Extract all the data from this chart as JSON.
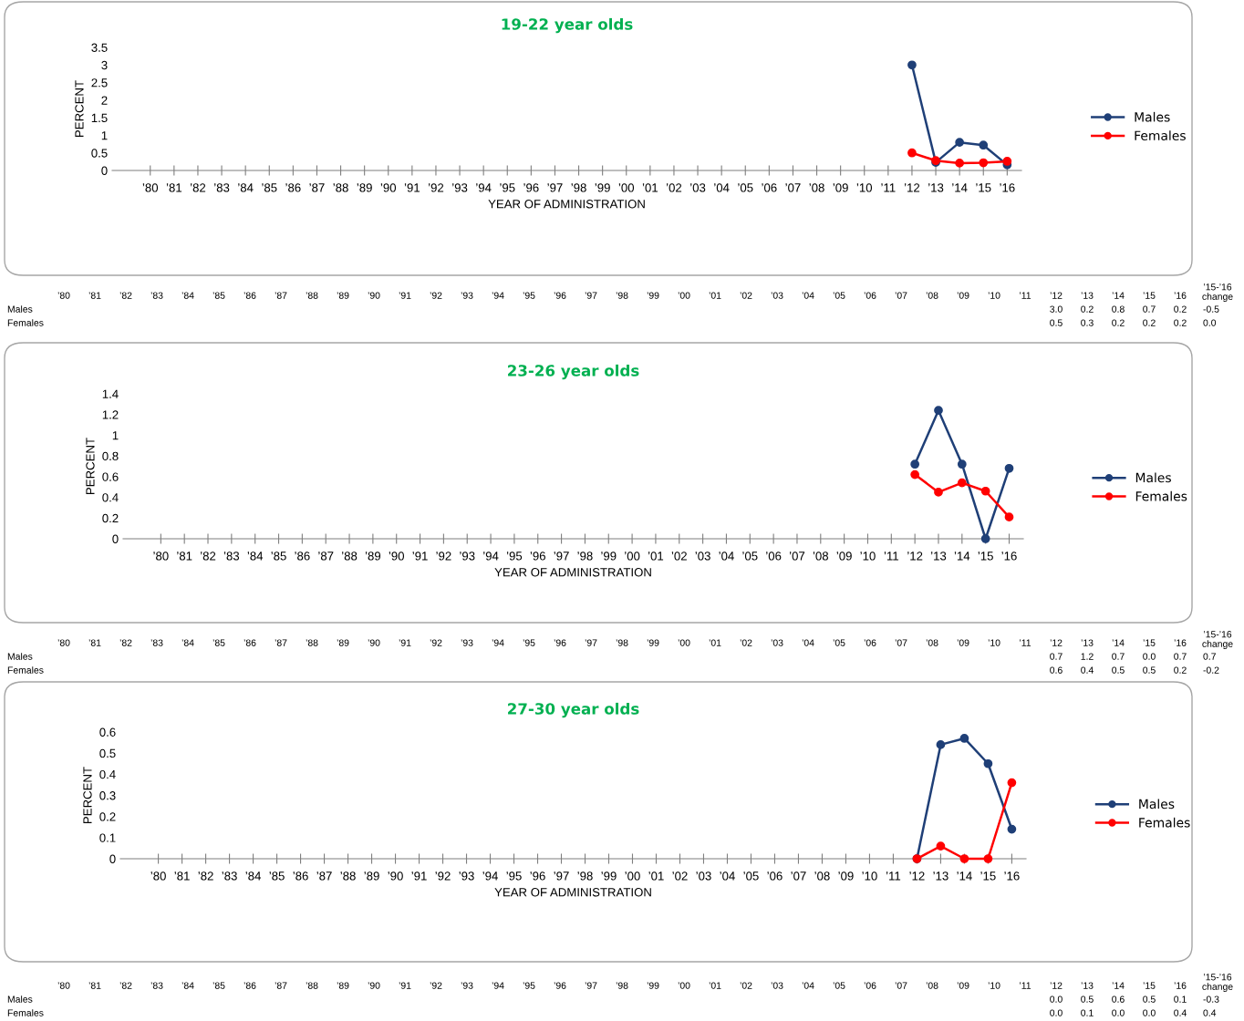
{
  "chart_data": [
    {
      "type": "line",
      "title": "19-22 year olds",
      "xlabel": "YEAR OF ADMINISTRATION",
      "ylabel": "PERCENT",
      "categories": [
        "’80",
        "’81",
        "’82",
        "’83",
        "’84",
        "’85",
        "’86",
        "’87",
        "’88",
        "’89",
        "’90",
        "’91",
        "’92",
        "’93",
        "’94",
        "’95",
        "’96",
        "’97",
        "’98",
        "’99",
        "’00",
        "’01",
        "’02",
        "’03",
        "’04",
        "’05",
        "’06",
        "’07",
        "’08",
        "’09",
        "’10",
        "’11",
        "’12",
        "’13",
        "’14",
        "’15",
        "’16"
      ],
      "ylim": [
        0,
        3.5
      ],
      "yticks": [
        0,
        0.5,
        1,
        1.5,
        2,
        2.5,
        3,
        3.5
      ],
      "grid": false,
      "legend": "right",
      "marker": "circle",
      "line_style": "solid",
      "series": [
        {
          "name": "Males",
          "color": "#1f3f77",
          "values": [
            null,
            null,
            null,
            null,
            null,
            null,
            null,
            null,
            null,
            null,
            null,
            null,
            null,
            null,
            null,
            null,
            null,
            null,
            null,
            null,
            null,
            null,
            null,
            null,
            null,
            null,
            null,
            null,
            null,
            null,
            null,
            null,
            3.0,
            0.23,
            0.8,
            0.72,
            0.16
          ]
        },
        {
          "name": "Females",
          "color": "#ff0000",
          "values": [
            null,
            null,
            null,
            null,
            null,
            null,
            null,
            null,
            null,
            null,
            null,
            null,
            null,
            null,
            null,
            null,
            null,
            null,
            null,
            null,
            null,
            null,
            null,
            null,
            null,
            null,
            null,
            null,
            null,
            null,
            null,
            null,
            0.5,
            0.28,
            0.21,
            0.22,
            0.26
          ]
        }
      ],
      "annotations": [
        "’15-’16\nchange",
        "3.0",
        "0.2",
        "0.8",
        "0.7",
        "0.2",
        "-0.5",
        "0.5",
        "0.3",
        "0.2",
        "0.2",
        "0.2",
        "0.0"
      ]
    },
    {
      "type": "line",
      "title": "23-26 year olds",
      "xlabel": "YEAR OF ADMINISTRATION",
      "ylabel": "PERCENT",
      "categories": [
        "’80",
        "’81",
        "’82",
        "’83",
        "’84",
        "’85",
        "’86",
        "’87",
        "’88",
        "’89",
        "’90",
        "’91",
        "’92",
        "’93",
        "’94",
        "’95",
        "’96",
        "’97",
        "’98",
        "’99",
        "’00",
        "’01",
        "’02",
        "’03",
        "’04",
        "’05",
        "’06",
        "’07",
        "’08",
        "’09",
        "’10",
        "’11",
        "’12",
        "’13",
        "’14",
        "’15",
        "’16"
      ],
      "ylim": [
        0,
        1.4
      ],
      "yticks": [
        0,
        0.2,
        0.4,
        0.6,
        0.8,
        1,
        1.2,
        1.4
      ],
      "grid": false,
      "legend": "right",
      "marker": "circle",
      "line_style": "solid",
      "series": [
        {
          "name": "Males",
          "color": "#1f3f77",
          "values": [
            null,
            null,
            null,
            null,
            null,
            null,
            null,
            null,
            null,
            null,
            null,
            null,
            null,
            null,
            null,
            null,
            null,
            null,
            null,
            null,
            null,
            null,
            null,
            null,
            null,
            null,
            null,
            null,
            null,
            null,
            null,
            null,
            0.72,
            1.24,
            0.72,
            0.0,
            0.68
          ]
        },
        {
          "name": "Females",
          "color": "#ff0000",
          "values": [
            null,
            null,
            null,
            null,
            null,
            null,
            null,
            null,
            null,
            null,
            null,
            null,
            null,
            null,
            null,
            null,
            null,
            null,
            null,
            null,
            null,
            null,
            null,
            null,
            null,
            null,
            null,
            null,
            null,
            null,
            null,
            null,
            0.62,
            0.45,
            0.54,
            0.46,
            0.21
          ]
        }
      ],
      "annotations": [
        "’15-’16\nchange",
        "0.7",
        "1.2",
        "0.7",
        "0.0",
        "0.7",
        "0.7",
        "0.6",
        "0.4",
        "0.5",
        "0.5",
        "0.2",
        "-0.2"
      ]
    },
    {
      "type": "line",
      "title": "27-30 year olds",
      "xlabel": "YEAR OF ADMINISTRATION",
      "ylabel": "PERCENT",
      "categories": [
        "’80",
        "’81",
        "’82",
        "’83",
        "’84",
        "’85",
        "’86",
        "’87",
        "’88",
        "’89",
        "’90",
        "’91",
        "’92",
        "’93",
        "’94",
        "’95",
        "’96",
        "’97",
        "’98",
        "’99",
        "’00",
        "’01",
        "’02",
        "’03",
        "’04",
        "’05",
        "’06",
        "’07",
        "’08",
        "’09",
        "’10",
        "’11",
        "’12",
        "’13",
        "’14",
        "’15",
        "’16"
      ],
      "ylim": [
        0,
        0.6
      ],
      "yticks": [
        0,
        0.1,
        0.2,
        0.3,
        0.4,
        0.5,
        0.6
      ],
      "grid": false,
      "legend": "right",
      "marker": "circle",
      "line_style": "solid",
      "series": [
        {
          "name": "Males",
          "color": "#1f3f77",
          "values": [
            null,
            null,
            null,
            null,
            null,
            null,
            null,
            null,
            null,
            null,
            null,
            null,
            null,
            null,
            null,
            null,
            null,
            null,
            null,
            null,
            null,
            null,
            null,
            null,
            null,
            null,
            null,
            null,
            null,
            null,
            null,
            null,
            0.0,
            0.54,
            0.57,
            0.45,
            0.14
          ]
        },
        {
          "name": "Females",
          "color": "#ff0000",
          "values": [
            null,
            null,
            null,
            null,
            null,
            null,
            null,
            null,
            null,
            null,
            null,
            null,
            null,
            null,
            null,
            null,
            null,
            null,
            null,
            null,
            null,
            null,
            null,
            null,
            null,
            null,
            null,
            null,
            null,
            null,
            null,
            null,
            0.0,
            0.06,
            0.0,
            0.0,
            0.36
          ]
        }
      ],
      "annotations": [
        "’15-’16\nchange",
        "0.0",
        "0.5",
        "0.6",
        "0.5",
        "0.1",
        "-0.3",
        "0.0",
        "0.1",
        "0.0",
        "0.0",
        "0.4",
        "0.4"
      ]
    }
  ]
}
